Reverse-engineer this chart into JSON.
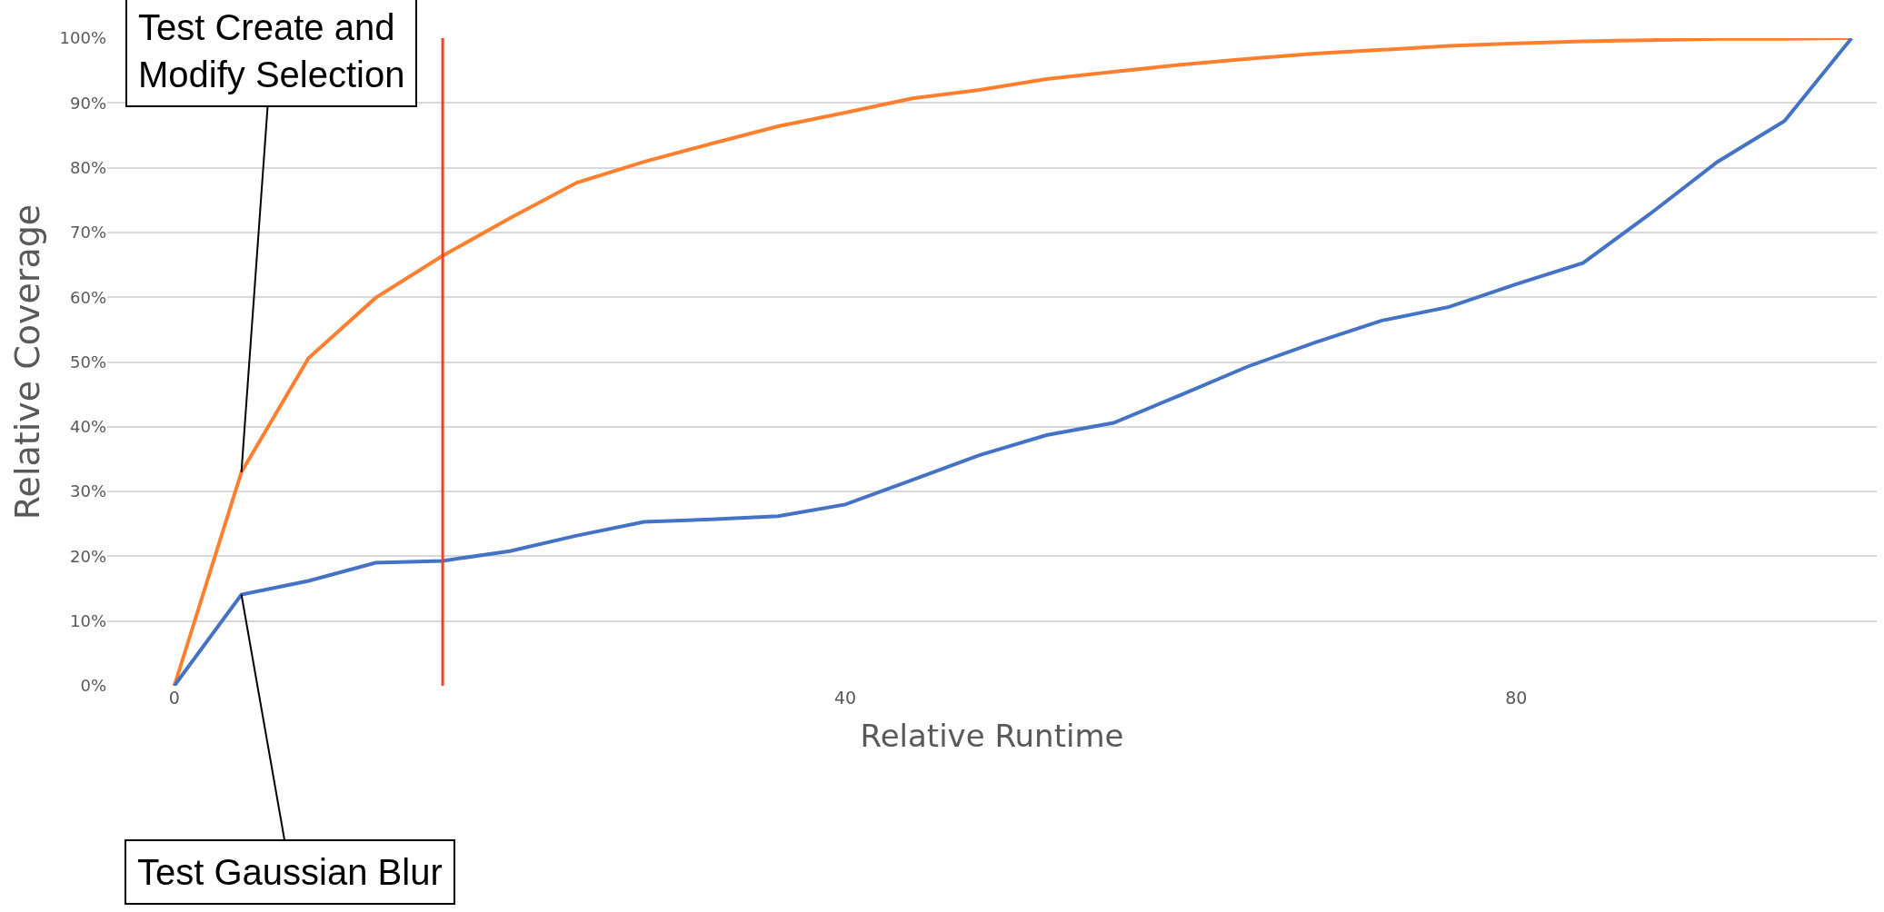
{
  "chart_data": {
    "type": "line",
    "xlabel": "Relative Runtime",
    "ylabel": "Relative Coverage",
    "x": [
      0,
      4,
      8,
      12,
      16,
      20,
      24,
      28,
      32,
      36,
      40,
      44,
      48,
      52,
      56,
      60,
      64,
      68,
      72,
      76,
      80,
      84,
      88,
      92,
      96,
      100
    ],
    "series": [
      {
        "color": "#ff7f2f",
        "values": [
          0,
          33.0,
          50.6,
          59.9,
          66.4,
          72.2,
          77.7,
          80.9,
          83.7,
          86.4,
          88.5,
          90.7,
          92.0,
          93.7,
          94.8,
          95.9,
          96.8,
          97.6,
          98.2,
          98.8,
          99.2,
          99.5,
          99.7,
          99.9,
          99.9,
          100
        ]
      },
      {
        "color": "#4472c4",
        "values": [
          0,
          14.1,
          16.2,
          19.0,
          19.3,
          20.8,
          23.2,
          25.3,
          25.7,
          26.2,
          28.0,
          31.8,
          35.6,
          38.7,
          40.6,
          44.9,
          49.3,
          53.0,
          56.4,
          58.5,
          62.0,
          65.3,
          72.9,
          80.9,
          87.2,
          100
        ]
      }
    ],
    "xlim": [
      -4,
      101.5
    ],
    "xticks": [
      0,
      40,
      80
    ],
    "ylim": [
      0,
      100
    ],
    "yticks": [
      {
        "value": 0,
        "label": "0%"
      },
      {
        "value": 10,
        "label": "10%"
      },
      {
        "value": 20,
        "label": "20%"
      },
      {
        "value": 30,
        "label": "30%"
      },
      {
        "value": 40,
        "label": "40%"
      },
      {
        "value": 50,
        "label": "50%"
      },
      {
        "value": 60,
        "label": "60%"
      },
      {
        "value": 70,
        "label": "70%"
      },
      {
        "value": 80,
        "label": "80%"
      },
      {
        "value": 90,
        "label": "90%"
      },
      {
        "value": 100,
        "label": "100%"
      }
    ],
    "grid": "y",
    "marker": "none",
    "line_style": "solid",
    "ref_lines": [
      {
        "axis": "x",
        "value": 16,
        "color": "#e8452c"
      }
    ],
    "annotations": [
      {
        "text": "Test Create and\nModify Selection",
        "x": 4,
        "y": 33.0
      },
      {
        "text": "Test Gaussian Blur",
        "x": 4,
        "y": 14.1
      }
    ]
  }
}
